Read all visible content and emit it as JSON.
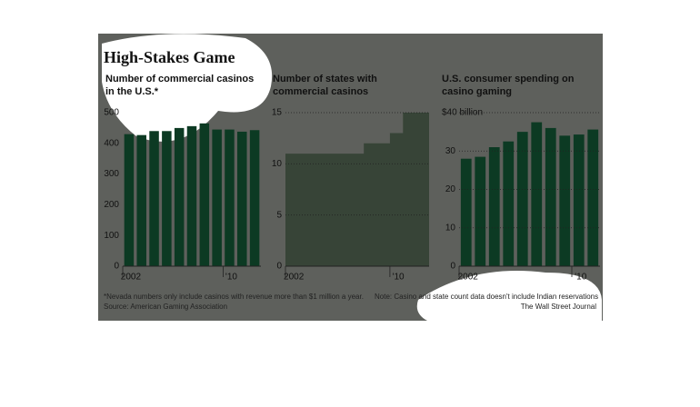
{
  "title": "High-Stakes Game",
  "footnote": "*Nevada numbers only include casinos with revenue more than $1 million a year.",
  "source": "Source: American Gaming Association",
  "note": "Note: Casino and state count data doesn't include Indian reservations",
  "credit": "The Wall Street Journal",
  "chart_data": [
    {
      "type": "bar",
      "title": "Number of commercial casinos in the U.S.*",
      "categories": [
        "2002",
        null,
        null,
        null,
        null,
        null,
        null,
        null,
        "'10",
        null,
        null
      ],
      "values": [
        430,
        427,
        440,
        440,
        450,
        456,
        465,
        445,
        445,
        438,
        443
      ],
      "color": "#0c3a23",
      "ylim": [
        0,
        500
      ],
      "yticks": [
        0,
        100,
        200,
        300,
        400,
        500
      ],
      "grid": false
    },
    {
      "type": "area",
      "title": "Number of states with commercial casinos",
      "categories": [
        "2002",
        null,
        null,
        null,
        null,
        null,
        null,
        null,
        "'10",
        null,
        null
      ],
      "values": [
        11,
        11,
        11,
        11,
        11,
        11,
        12,
        12,
        13,
        15,
        15
      ],
      "color": "#374437",
      "ylim": [
        0,
        15
      ],
      "yticks": [
        0,
        5,
        10,
        15
      ],
      "grid": true
    },
    {
      "type": "bar",
      "title": "U.S. consumer spending on casino gaming",
      "categories": [
        "2002",
        null,
        null,
        null,
        null,
        null,
        null,
        null,
        "'10",
        null
      ],
      "values": [
        28,
        28.5,
        31,
        32.5,
        35,
        37.5,
        36,
        34,
        34.3,
        35.6
      ],
      "color": "#0c3a23",
      "ylim": [
        0,
        40
      ],
      "yticks": [
        0,
        10,
        20,
        30,
        {
          "value": 40,
          "label": "$40 billion"
        }
      ],
      "grid": true
    }
  ]
}
